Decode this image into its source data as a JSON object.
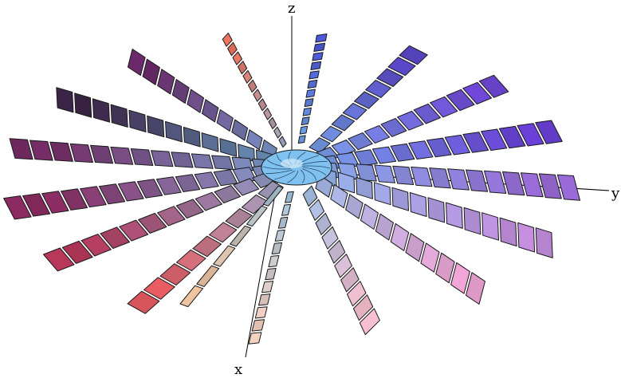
{
  "axes": {
    "x_label": "x",
    "y_label": "y",
    "z_label": "z"
  },
  "spokes": [
    {
      "color": "#6a2a6a"
    },
    {
      "color": "#3c2446"
    },
    {
      "color": "#762c66"
    },
    {
      "color": "#8c2a62"
    },
    {
      "color": "#b8385a"
    },
    {
      "color": "#e85c62"
    },
    {
      "color": "#ee7460"
    },
    {
      "color": "#4c58d8"
    },
    {
      "color": "#5a48c8"
    },
    {
      "color": "#7048d8"
    },
    {
      "color": "#6a40d8"
    },
    {
      "color": "#9a6ad8"
    },
    {
      "color": "#c68fe0"
    },
    {
      "color": "#f2a6d8"
    },
    {
      "color": "#f7c0d0"
    },
    {
      "color": "#f6d2c2"
    },
    {
      "color": "#f1c4a0"
    }
  ],
  "palette": {
    "hub_color": "#7fc2f0",
    "hub_highlight": "#d6ecfa",
    "outline_color": "#1b1b1b"
  }
}
